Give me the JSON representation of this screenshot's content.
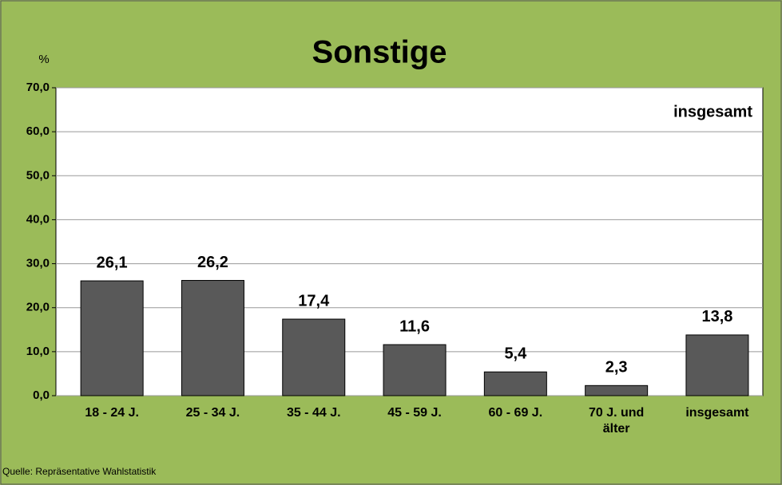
{
  "chart_data": {
    "type": "bar",
    "title": "Sonstige",
    "y_unit": "%",
    "annotation": "insgesamt",
    "source": "Quelle: Repräsentative Wahlstatistik",
    "categories": [
      "18 - 24 J.",
      "25 - 34 J.",
      "35 - 44 J.",
      "45 - 59 J.",
      "60 - 69 J.",
      "70 J. und älter",
      "insgesamt"
    ],
    "values": [
      26.1,
      26.2,
      17.4,
      11.6,
      5.4,
      2.3,
      13.8
    ],
    "value_labels": [
      "26,1",
      "26,2",
      "17,4",
      "11,6",
      "5,4",
      "2,3",
      "13,8"
    ],
    "color": "#595959",
    "ylim": [
      0,
      70
    ],
    "yticks": [
      {
        "value": 0,
        "label": "0,0"
      },
      {
        "value": 10,
        "label": "10,0"
      },
      {
        "value": 20,
        "label": "20,0"
      },
      {
        "value": 30,
        "label": "30,0"
      },
      {
        "value": 40,
        "label": "40,0"
      },
      {
        "value": 50,
        "label": "50,0"
      },
      {
        "value": 60,
        "label": "60,0"
      },
      {
        "value": 70,
        "label": "70,0"
      }
    ],
    "grid": true
  }
}
